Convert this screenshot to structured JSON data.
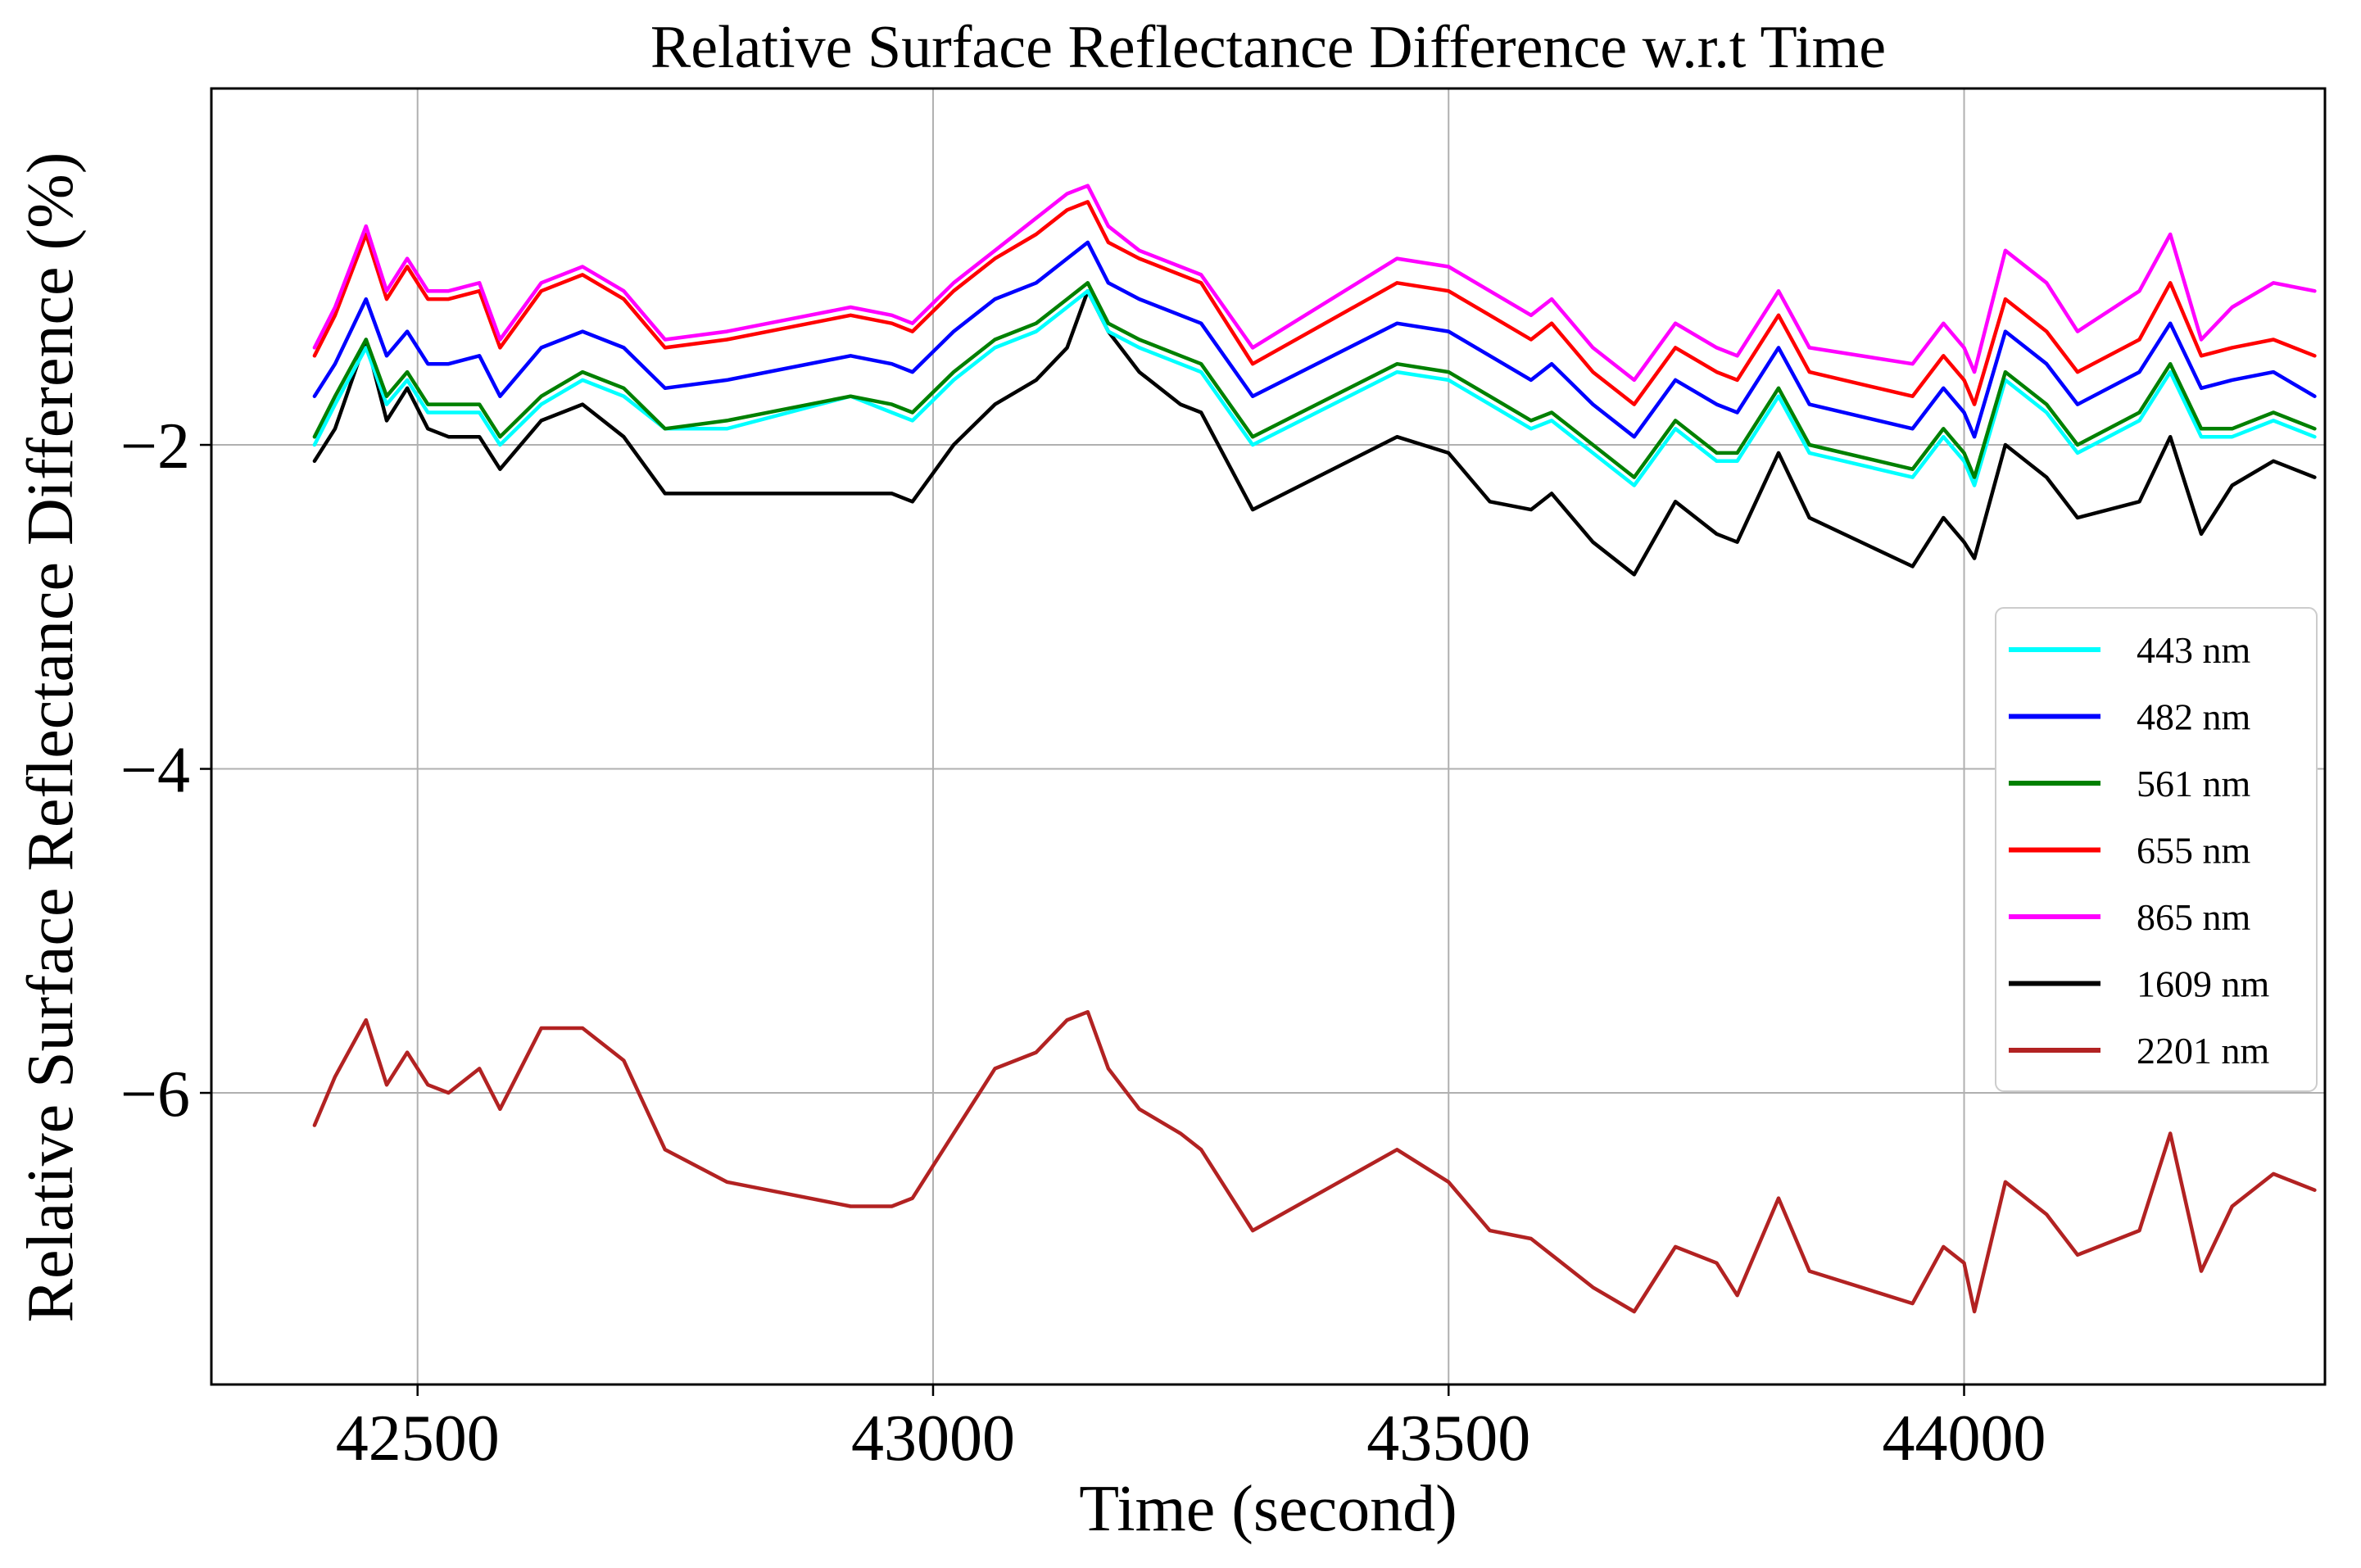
{
  "chart_data": {
    "type": "line",
    "title": "Relative Surface Reflectance Difference w.r.t Time",
    "xlabel": "Time (second)",
    "ylabel": "Relative Surface Reflectance Difference (%)",
    "xlim": [
      42300,
      44350
    ],
    "ylim": [
      -7.8,
      0.2
    ],
    "xticks": [
      42500,
      43000,
      43500,
      44000
    ],
    "xtick_labels": [
      "42500",
      "43000",
      "43500",
      "44000"
    ],
    "yticks": [
      -2,
      -4,
      -6
    ],
    "ytick_labels": [
      "−2",
      "−4",
      "−6"
    ],
    "grid": true,
    "legend_position": "right",
    "x": [
      42400,
      42420,
      42450,
      42470,
      42490,
      42510,
      42530,
      42560,
      42580,
      42620,
      42660,
      42700,
      42740,
      42800,
      42920,
      42960,
      42980,
      43020,
      43060,
      43100,
      43130,
      43150,
      43170,
      43200,
      43240,
      43260,
      43310,
      43450,
      43500,
      43540,
      43580,
      43600,
      43640,
      43680,
      43720,
      43760,
      43780,
      43820,
      43850,
      43950,
      43980,
      44000,
      44010,
      44040,
      44080,
      44110,
      44170,
      44200,
      44230,
      44260,
      44300,
      44340
    ],
    "series": [
      {
        "name": "443 nm",
        "color": "#00ffff",
        "values": [
          -2.0,
          -1.75,
          -1.4,
          -1.75,
          -1.6,
          -1.8,
          -1.8,
          -1.8,
          -2.0,
          -1.75,
          -1.6,
          -1.7,
          -1.9,
          -1.9,
          -1.7,
          -1.8,
          -1.85,
          -1.6,
          -1.4,
          -1.3,
          -1.15,
          -1.05,
          -1.3,
          -1.4,
          -1.5,
          -1.55,
          -2.0,
          -1.55,
          -1.6,
          -1.75,
          -1.9,
          -1.85,
          -2.05,
          -2.25,
          -1.9,
          -2.1,
          -2.1,
          -1.7,
          -2.05,
          -2.2,
          -1.95,
          -2.1,
          -2.25,
          -1.6,
          -1.8,
          -2.05,
          -1.85,
          -1.55,
          -1.95,
          -1.95,
          -1.85,
          -1.95
        ]
      },
      {
        "name": "482 nm",
        "color": "#0000ff",
        "values": [
          -1.7,
          -1.5,
          -1.1,
          -1.45,
          -1.3,
          -1.5,
          -1.5,
          -1.45,
          -1.7,
          -1.4,
          -1.3,
          -1.4,
          -1.65,
          -1.6,
          -1.45,
          -1.5,
          -1.55,
          -1.3,
          -1.1,
          -1.0,
          -0.85,
          -0.75,
          -1.0,
          -1.1,
          -1.2,
          -1.25,
          -1.7,
          -1.25,
          -1.3,
          -1.45,
          -1.6,
          -1.5,
          -1.75,
          -1.95,
          -1.6,
          -1.75,
          -1.8,
          -1.4,
          -1.75,
          -1.9,
          -1.65,
          -1.8,
          -1.95,
          -1.3,
          -1.5,
          -1.75,
          -1.55,
          -1.25,
          -1.65,
          -1.6,
          -1.55,
          -1.7
        ]
      },
      {
        "name": "561 nm",
        "color": "#008000",
        "values": [
          -1.95,
          -1.7,
          -1.35,
          -1.7,
          -1.55,
          -1.75,
          -1.75,
          -1.75,
          -1.95,
          -1.7,
          -1.55,
          -1.65,
          -1.9,
          -1.85,
          -1.7,
          -1.75,
          -1.8,
          -1.55,
          -1.35,
          -1.25,
          -1.1,
          -1.0,
          -1.25,
          -1.35,
          -1.45,
          -1.5,
          -1.95,
          -1.5,
          -1.55,
          -1.7,
          -1.85,
          -1.8,
          -2.0,
          -2.2,
          -1.85,
          -2.05,
          -2.05,
          -1.65,
          -2.0,
          -2.15,
          -1.9,
          -2.05,
          -2.2,
          -1.55,
          -1.75,
          -2.0,
          -1.8,
          -1.5,
          -1.9,
          -1.9,
          -1.8,
          -1.9
        ]
      },
      {
        "name": "655 nm",
        "color": "#ff0000",
        "values": [
          -1.45,
          -1.2,
          -0.7,
          -1.1,
          -0.9,
          -1.1,
          -1.1,
          -1.05,
          -1.4,
          -1.05,
          -0.95,
          -1.1,
          -1.4,
          -1.35,
          -1.2,
          -1.25,
          -1.3,
          -1.05,
          -0.85,
          -0.7,
          -0.55,
          -0.5,
          -0.75,
          -0.85,
          -0.95,
          -1.0,
          -1.5,
          -1.0,
          -1.05,
          -1.2,
          -1.35,
          -1.25,
          -1.55,
          -1.75,
          -1.4,
          -1.55,
          -1.6,
          -1.2,
          -1.55,
          -1.7,
          -1.45,
          -1.6,
          -1.75,
          -1.1,
          -1.3,
          -1.55,
          -1.35,
          -1.0,
          -1.45,
          -1.4,
          -1.35,
          -1.45
        ]
      },
      {
        "name": "865 nm",
        "color": "#ff00ff",
        "values": [
          -1.4,
          -1.15,
          -0.65,
          -1.05,
          -0.85,
          -1.05,
          -1.05,
          -1.0,
          -1.35,
          -1.0,
          -0.9,
          -1.05,
          -1.35,
          -1.3,
          -1.15,
          -1.2,
          -1.25,
          -1.0,
          -0.8,
          -0.6,
          -0.45,
          -0.4,
          -0.65,
          -0.8,
          -0.9,
          -0.95,
          -1.4,
          -0.85,
          -0.9,
          -1.05,
          -1.2,
          -1.1,
          -1.4,
          -1.6,
          -1.25,
          -1.4,
          -1.45,
          -1.05,
          -1.4,
          -1.5,
          -1.25,
          -1.4,
          -1.55,
          -0.8,
          -1.0,
          -1.3,
          -1.05,
          -0.7,
          -1.35,
          -1.15,
          -1.0,
          -1.05
        ]
      },
      {
        "name": "1609 nm",
        "color": "#000000",
        "values": [
          -2.1,
          -1.9,
          -1.35,
          -1.85,
          -1.65,
          -1.9,
          -1.95,
          -1.95,
          -2.15,
          -1.85,
          -1.75,
          -1.95,
          -2.3,
          -2.3,
          -2.3,
          -2.3,
          -2.35,
          -2.0,
          -1.75,
          -1.6,
          -1.4,
          -1.05,
          -1.3,
          -1.55,
          -1.75,
          -1.8,
          -2.4,
          -1.95,
          -2.05,
          -2.35,
          -2.4,
          -2.3,
          -2.6,
          -2.8,
          -2.35,
          -2.55,
          -2.6,
          -2.05,
          -2.45,
          -2.75,
          -2.45,
          -2.6,
          -2.7,
          -2.0,
          -2.2,
          -2.45,
          -2.35,
          -1.95,
          -2.55,
          -2.25,
          -2.1,
          -2.2
        ]
      },
      {
        "name": "2201 nm",
        "color": "#b22222",
        "values": [
          -6.2,
          -5.9,
          -5.55,
          -5.95,
          -5.75,
          -5.95,
          -6.0,
          -5.85,
          -6.1,
          -5.6,
          -5.6,
          -5.8,
          -6.35,
          -6.55,
          -6.7,
          -6.7,
          -6.65,
          -6.25,
          -5.85,
          -5.75,
          -5.55,
          -5.5,
          -5.85,
          -6.1,
          -6.25,
          -6.35,
          -6.85,
          -6.35,
          -6.55,
          -6.85,
          -6.9,
          -7.0,
          -7.2,
          -7.35,
          -6.95,
          -7.05,
          -7.25,
          -6.65,
          -7.1,
          -7.3,
          -6.95,
          -7.05,
          -7.35,
          -6.55,
          -6.75,
          -7.0,
          -6.85,
          -6.25,
          -7.1,
          -6.7,
          -6.5,
          -6.6
        ]
      }
    ]
  }
}
